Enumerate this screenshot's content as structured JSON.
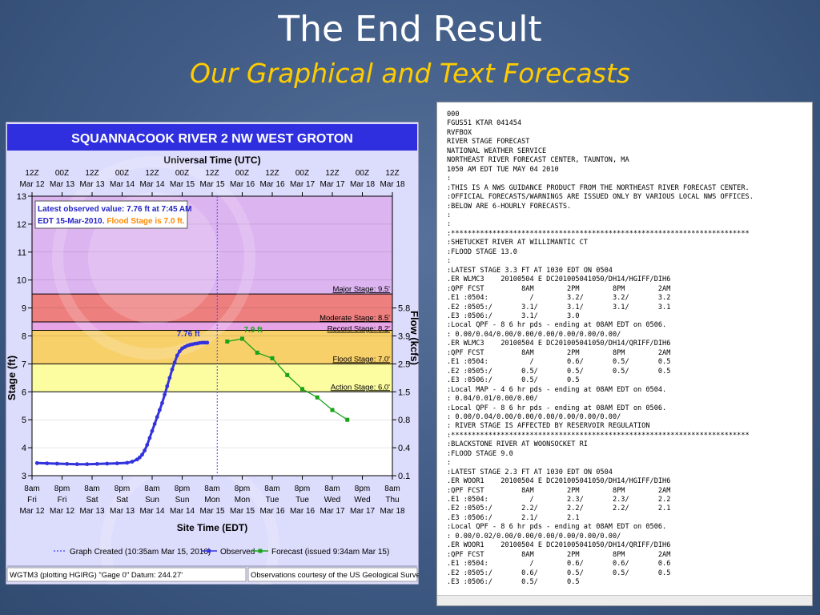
{
  "slide": {
    "title": "The End Result",
    "subtitle": "Our Graphical and Text Forecasts"
  },
  "colors": {
    "header_blue": "#2f2fe0",
    "plot_bg": "#dcdcfc",
    "record_band": "#e7a4e7",
    "major_band": "#ee7f7f",
    "moderate_band": "#f5b0b0",
    "flood_band": "#f8d06a",
    "action_band": "#fcfca0",
    "observed": "#3333dd",
    "forecast": "#19a319",
    "graph_created_line": "#4444ff"
  },
  "chart_data": {
    "type": "line",
    "title": "SQUANNACOOK RIVER 2 NW WEST GROTON",
    "top_axis_title": "Universal Time (UTC)",
    "bottom_axis_title": "Site Time (EDT)",
    "ylabel": "Stage (ft)",
    "ylabel_right": "Flow (kcfs)",
    "ylim": [
      3,
      13
    ],
    "y_ticks": [
      "3",
      "4",
      "5",
      "6",
      "7",
      "8",
      "9",
      "10",
      "11",
      "12",
      "13"
    ],
    "x_range_hours": [
      0,
      144
    ],
    "top_ticks": [
      {
        "h": 0,
        "l1": "12Z",
        "l2": "Mar 12"
      },
      {
        "h": 12,
        "l1": "00Z",
        "l2": "Mar 13"
      },
      {
        "h": 24,
        "l1": "12Z",
        "l2": "Mar 13"
      },
      {
        "h": 36,
        "l1": "00Z",
        "l2": "Mar 14"
      },
      {
        "h": 48,
        "l1": "12Z",
        "l2": "Mar 14"
      },
      {
        "h": 60,
        "l1": "00Z",
        "l2": "Mar 15"
      },
      {
        "h": 72,
        "l1": "12Z",
        "l2": "Mar 15"
      },
      {
        "h": 84,
        "l1": "00Z",
        "l2": "Mar 16"
      },
      {
        "h": 96,
        "l1": "12Z",
        "l2": "Mar 16"
      },
      {
        "h": 108,
        "l1": "00Z",
        "l2": "Mar 17"
      },
      {
        "h": 120,
        "l1": "12Z",
        "l2": "Mar 17"
      },
      {
        "h": 132,
        "l1": "00Z",
        "l2": "Mar 18"
      },
      {
        "h": 144,
        "l1": "12Z",
        "l2": "Mar 18"
      }
    ],
    "bottom_ticks": [
      {
        "h": 0,
        "l1": "8am",
        "l2": "Fri",
        "l3": "Mar 12"
      },
      {
        "h": 12,
        "l1": "8pm",
        "l2": "Fri",
        "l3": "Mar 12"
      },
      {
        "h": 24,
        "l1": "8am",
        "l2": "Sat",
        "l3": "Mar 13"
      },
      {
        "h": 36,
        "l1": "8pm",
        "l2": "Sat",
        "l3": "Mar 13"
      },
      {
        "h": 48,
        "l1": "8am",
        "l2": "Sun",
        "l3": "Mar 14"
      },
      {
        "h": 60,
        "l1": "8pm",
        "l2": "Sun",
        "l3": "Mar 14"
      },
      {
        "h": 72,
        "l1": "8am",
        "l2": "Mon",
        "l3": "Mar 15"
      },
      {
        "h": 84,
        "l1": "8pm",
        "l2": "Mon",
        "l3": "Mar 15"
      },
      {
        "h": 96,
        "l1": "8am",
        "l2": "Tue",
        "l3": "Mar 16"
      },
      {
        "h": 108,
        "l1": "8pm",
        "l2": "Tue",
        "l3": "Mar 16"
      },
      {
        "h": 120,
        "l1": "8am",
        "l2": "Wed",
        "l3": "Mar 17"
      },
      {
        "h": 132,
        "l1": "8pm",
        "l2": "Wed",
        "l3": "Mar 17"
      },
      {
        "h": 144,
        "l1": "8am",
        "l2": "Thu",
        "l3": "Mar 18"
      }
    ],
    "right_ticks": [
      {
        "stage": 3,
        "label": "0.1"
      },
      {
        "stage": 4,
        "label": "0.4"
      },
      {
        "stage": 5,
        "label": "0.8"
      },
      {
        "stage": 6,
        "label": "1.5"
      },
      {
        "stage": 7,
        "label": "2.5"
      },
      {
        "stage": 8,
        "label": "3.9"
      },
      {
        "stage": 9,
        "label": "5.8"
      }
    ],
    "stage_bands": [
      {
        "name": "Record Stage: 8.2'",
        "from": 8.2,
        "to": 8.5,
        "color": "#e7a4e7"
      },
      {
        "name": "Moderate Stage: 8.5'",
        "from": 8.5,
        "to": 9.5,
        "color": "#ee7f7f"
      },
      {
        "name": "Major Stage: 9.5'",
        "from": 9.5,
        "to": 13,
        "color": "#dcb4f0"
      },
      {
        "name": "Flood Stage: 7.0'",
        "from": 7.0,
        "to": 8.2,
        "color": "#f8d06a"
      },
      {
        "name": "Action Stage: 6.0'",
        "from": 6.0,
        "to": 7.0,
        "color": "#fcfca0"
      }
    ],
    "threshold_labels": [
      {
        "text": "Major Stage: 9.5'",
        "y": 9.5
      },
      {
        "text": "Moderate Stage: 8.5'",
        "y": 8.5
      },
      {
        "text": "Record Stage: 8.2'",
        "y": 8.2
      },
      {
        "text": "Flood Stage: 7.0'",
        "y": 7.0
      },
      {
        "text": "Action Stage: 6.0'",
        "y": 6.0
      }
    ],
    "graph_created_h": 74,
    "series": [
      {
        "name": "Observed",
        "x": [
          2,
          6,
          10,
          14,
          18,
          22,
          26,
          30,
          34,
          38,
          40,
          42,
          43,
          44,
          45,
          46,
          47,
          48,
          49,
          50,
          51,
          52,
          53,
          54,
          55,
          56,
          57,
          58,
          59,
          60,
          61,
          62,
          63,
          64,
          65,
          66,
          67,
          68,
          69,
          70
        ],
        "y": [
          3.45,
          3.44,
          3.43,
          3.42,
          3.41,
          3.41,
          3.42,
          3.43,
          3.44,
          3.46,
          3.5,
          3.58,
          3.65,
          3.75,
          3.9,
          4.1,
          4.35,
          4.6,
          4.85,
          5.1,
          5.35,
          5.6,
          5.9,
          6.2,
          6.5,
          6.8,
          7.05,
          7.3,
          7.45,
          7.55,
          7.6,
          7.65,
          7.68,
          7.7,
          7.72,
          7.73,
          7.75,
          7.76,
          7.76,
          7.76
        ]
      },
      {
        "name": "Forecast (issued 9:34am Mar 15)",
        "x": [
          78,
          84,
          90,
          96,
          102,
          108,
          114,
          120,
          126
        ],
        "y": [
          7.8,
          7.9,
          7.4,
          7.2,
          6.6,
          6.1,
          5.8,
          5.35,
          5.0
        ]
      }
    ],
    "annotations": {
      "obs_peak": "7.76 ft",
      "fcst_peak": "7.9 ft",
      "latest_obs_line1": "Latest observed value: 7.76 ft at 7:45 AM",
      "latest_obs_line2a": "EDT 15-Mar-2010.",
      "latest_obs_line2b": "Flood Stage is 7.0 ft."
    },
    "legend": {
      "created": "Graph Created (10:35am Mar 15, 2010)",
      "observed": "Observed",
      "forecast": "Forecast (issued 9:34am Mar 15)"
    },
    "footer": {
      "left": "WGTM3 (plotting HGIRG)  \"Gage 0\" Datum: 244.27'",
      "right": "Observations courtesy of the  US Geological Survey"
    }
  },
  "text_product": {
    "lines": [
      "000",
      "FGUS51 KTAR 041454",
      "RVFBOX",
      "RIVER STAGE FORECAST",
      "NATIONAL WEATHER SERVICE",
      "NORTHEAST RIVER FORECAST CENTER, TAUNTON, MA",
      "1050 AM EDT TUE MAY 04 2010",
      ":",
      ":THIS IS A NWS GUIDANCE PRODUCT FROM THE NORTHEAST RIVER FORECAST CENTER.",
      ":OFFICIAL FORECASTS/WARNINGS ARE ISSUED ONLY BY VARIOUS LOCAL NWS OFFICES.",
      ":BELOW ARE 6-HOURLY FORECASTS.",
      ":",
      ":",
      ":************************************************************************",
      ":SHETUCKET RIVER AT WILLIMANTIC CT",
      ":FLOOD STAGE 13.0",
      ":",
      ":LATEST STAGE 3.3 FT AT 1030 EDT ON 0504",
      ".ER WLMC3    20100504 E DC201005041050/DH14/HGIFF/DIH6",
      ":QPF FCST         8AM        2PM        8PM        2AM",
      ".E1 :0504:          /        3.2/       3.2/       3.2",
      ".E2 :0505:/       3.1/       3.1/       3.1/       3.1",
      ".E3 :0506:/       3.1/       3.0",
      ":Local QPF - 8 6 hr pds - ending at 08AM EDT on 0506.",
      ": 0.00/0.04/0.00/0.00/0.00/0.00/0.00/0.00/",
      ".ER WLMC3    20100504 E DC201005041050/DH14/QRIFF/DIH6",
      ":QPF FCST         8AM        2PM        8PM        2AM",
      ".E1 :0504:          /        0.6/       0.5/       0.5",
      ".E2 :0505:/       0.5/       0.5/       0.5/       0.5",
      ".E3 :0506:/       0.5/       0.5",
      ":Local MAP - 4 6 hr pds - ending at 08AM EDT on 0504.",
      ": 0.04/0.01/0.00/0.00/",
      ":Local QPF - 8 6 hr pds - ending at 08AM EDT on 0506.",
      ": 0.00/0.04/0.00/0.00/0.00/0.00/0.00/0.00/",
      ": RIVER STAGE IS AFFECTED BY RESERVOIR REGULATION",
      ":************************************************************************",
      ":BLACKSTONE RIVER AT WOONSOCKET RI",
      ":FLOOD STAGE 9.0",
      ":",
      ":LATEST STAGE 2.3 FT AT 1030 EDT ON 0504",
      ".ER WOOR1    20100504 E DC201005041050/DH14/HGIFF/DIH6",
      ":QPF FCST         8AM        2PM        8PM        2AM",
      ".E1 :0504:          /        2.3/       2.3/       2.2",
      ".E2 :0505:/       2.2/       2.2/       2.2/       2.1",
      ".E3 :0506:/       2.1/       2.1",
      ":Local QPF - 8 6 hr pds - ending at 08AM EDT on 0506.",
      ": 0.00/0.02/0.00/0.00/0.00/0.00/0.00/0.00/",
      ".ER WOOR1    20100504 E DC201005041050/DH14/QRIFF/DIH6",
      ":QPF FCST         8AM        2PM        8PM        2AM",
      ".E1 :0504:          /        0.6/       0.6/       0.6",
      ".E2 :0505:/       0.6/       0.5/       0.5/       0.5",
      ".E3 :0506:/       0.5/       0.5"
    ]
  }
}
